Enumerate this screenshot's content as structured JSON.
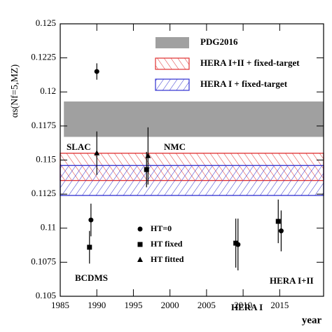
{
  "chart_data": {
    "type": "scatter",
    "xlabel": "year",
    "ylabel": "αs(Nf=5,MZ)",
    "xlim": [
      1985,
      2021
    ],
    "ylim": [
      0.105,
      0.125
    ],
    "xticks": [
      1985,
      1990,
      1995,
      2000,
      2005,
      2010,
      2015
    ],
    "yticks": [
      0.105,
      0.1075,
      0.11,
      0.1125,
      0.115,
      0.1175,
      0.12,
      0.1225,
      0.125
    ],
    "bands": [
      {
        "name": "PDG2016",
        "lo": 0.1167,
        "hi": 0.1193,
        "x_from": 1985.5,
        "color": "#a0a0a0",
        "hatch": "solid"
      },
      {
        "name": "HERA I+II + fixed-target",
        "lo": 0.1135,
        "hi": 0.1155,
        "x_from": 1985,
        "color": "#e03030",
        "hatch": "forward"
      },
      {
        "name": "HERA I + fixed-target",
        "lo": 0.1124,
        "hi": 0.1146,
        "x_from": 1985,
        "color": "#3030d0",
        "hatch": "backward"
      }
    ],
    "series": [
      {
        "name": "HT=0",
        "marker": "circle",
        "color": "#000000",
        "x": [
          1990,
          1989.2,
          2009.3,
          2015.2
        ],
        "values": [
          0.1215,
          0.1106,
          0.1088,
          0.1098
        ],
        "errors": [
          0.0006,
          0.0012,
          0.0019,
          0.0015
        ]
      },
      {
        "name": "HT fixed",
        "marker": "square",
        "color": "#000000",
        "x": [
          1989,
          1996.8,
          2009,
          2014.8
        ],
        "values": [
          0.1086,
          0.1143,
          0.1089,
          0.1105
        ],
        "errors": [
          0.0012,
          0.0013,
          0.0018,
          0.0016
        ]
      },
      {
        "name": "HT fitted",
        "marker": "triangle",
        "color": "#000000",
        "x": [
          1990,
          1997
        ],
        "values": [
          0.1155,
          0.1153
        ],
        "errors": [
          0.0016,
          0.0021
        ]
      }
    ],
    "annotations": [
      "SLAC",
      "NMC",
      "BCDMS",
      "HERA I",
      "HERA I+II"
    ]
  }
}
